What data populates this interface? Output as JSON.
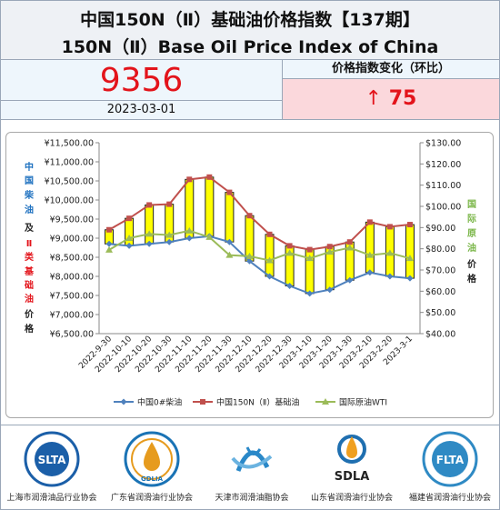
{
  "header": {
    "title_cn": "中国150N（Ⅱ）基础油价格指数【137期】",
    "title_en": "150N（Ⅱ）Base Oil Price Index of China"
  },
  "index": {
    "value": "9356",
    "date": "2023-03-01",
    "change_label": "价格指数变化（环比）",
    "change_arrow": "↑",
    "change_value": "75",
    "change_color": "#e3141b"
  },
  "chart_data": {
    "type": "line",
    "categories": [
      "2022-9-30",
      "2022-10-10",
      "2022-10-20",
      "2022-10-30",
      "2022-11-10",
      "2022-11-20",
      "2022-11-30",
      "2022-12-10",
      "2022-12-20",
      "2022-12-30",
      "2023-1-10",
      "2023-1-20",
      "2023-1-30",
      "2023-2-10",
      "2023-2-20",
      "2023-3-1"
    ],
    "y_left": {
      "min": 6500,
      "max": 11500,
      "step": 500,
      "ticks": [
        "¥6,500.00",
        "¥7,000.00",
        "¥7,500.00",
        "¥8,000.00",
        "¥8,500.00",
        "¥9,000.00",
        "¥9,500.00",
        "¥10,000.00",
        "¥10,500.00",
        "¥11,000.00",
        "¥11,500.00"
      ]
    },
    "y_right": {
      "min": 40,
      "max": 130,
      "step": 10,
      "ticks": [
        "$40.00",
        "$50.00",
        "$60.00",
        "$70.00",
        "$80.00",
        "$90.00",
        "$100.00",
        "$110.00",
        "$120.00",
        "$130.00"
      ]
    },
    "ylabel_left": [
      "中",
      "国",
      "柴",
      "油",
      "及",
      "Ⅱ",
      "类",
      "基",
      "础",
      "油",
      "价",
      "格"
    ],
    "ylabel_right": [
      "国",
      "际",
      "原",
      "油",
      "价",
      "格"
    ],
    "series": [
      {
        "name": "中国0#柴油",
        "axis": "left",
        "color": "#4f81bd",
        "values": [
          8850,
          8800,
          8850,
          8900,
          9000,
          9050,
          8900,
          8400,
          8000,
          7750,
          7550,
          7650,
          7900,
          8100,
          8000,
          7950
        ]
      },
      {
        "name": "中国150N（Ⅱ）基础油",
        "axis": "left",
        "color": "#c0504d",
        "values": [
          9220,
          9520,
          9870,
          9890,
          10540,
          10600,
          10200,
          9590,
          9100,
          8800,
          8700,
          8780,
          8900,
          9420,
          9300,
          9356
        ]
      },
      {
        "name": "国际原油WTI",
        "axis": "right",
        "color": "#9bbb59",
        "values": [
          79.5,
          85.0,
          87.0,
          86.5,
          88.5,
          85.5,
          77.0,
          76.5,
          74.5,
          78.0,
          75.5,
          78.5,
          80.5,
          77.0,
          78.0,
          75.5
        ]
      }
    ],
    "grid": false,
    "legend": "bottom"
  },
  "associations": [
    {
      "name": "上海市润滑油品行业协会",
      "abbr": "SLTA",
      "color": "#1b5fa8"
    },
    {
      "name": "广东省润滑油行业协会",
      "abbr": "GDLIA",
      "color": "#1a73b5"
    },
    {
      "name": "天津市润滑油脂协会",
      "abbr": "",
      "color": "#2a88c8"
    },
    {
      "name": "山东省润滑油行业协会",
      "abbr": "SDLA",
      "color": "#1f6fb0"
    },
    {
      "name": "福建省润滑油行业协会",
      "abbr": "FLTA",
      "color": "#2f8ac4"
    }
  ]
}
